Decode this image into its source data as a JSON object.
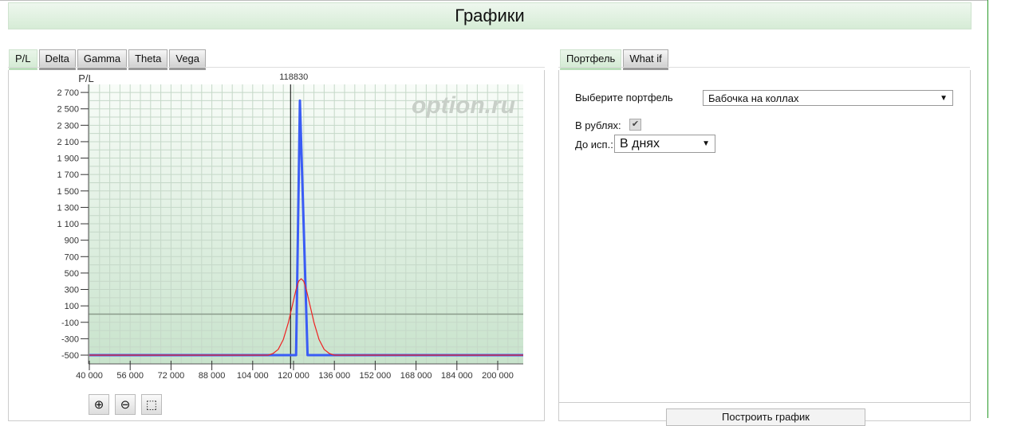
{
  "header": {
    "title": "Графики"
  },
  "left_tabs": [
    {
      "label": "P/L",
      "active": true
    },
    {
      "label": "Delta"
    },
    {
      "label": "Gamma"
    },
    {
      "label": "Theta"
    },
    {
      "label": "Vega"
    }
  ],
  "right_tabs": [
    {
      "label": "Портфель",
      "active": true
    },
    {
      "label": "What if"
    }
  ],
  "chart_data": {
    "type": "line",
    "ylabel": "P/L",
    "watermark": "option.ru",
    "xlim": [
      40000,
      210000
    ],
    "ylim": [
      -600,
      2800
    ],
    "xticks": [
      40000,
      56000,
      72000,
      88000,
      104000,
      120000,
      136000,
      152000,
      168000,
      184000,
      200000
    ],
    "xtick_labels": [
      "40 000",
      "56 000",
      "72 000",
      "88 000",
      "104 000",
      "120 000",
      "136 000",
      "152 000",
      "168 000",
      "184 000",
      "200 000"
    ],
    "yticks": [
      2700,
      2500,
      2300,
      2100,
      1900,
      1700,
      1500,
      1300,
      1100,
      900,
      700,
      500,
      300,
      100,
      -100,
      -300,
      -500
    ],
    "ytick_labels": [
      "2 700",
      "2 500",
      "2 300",
      "2 100",
      "1 900",
      "1 700",
      "1 500",
      "1 300",
      "1 100",
      "900",
      "700",
      "500",
      "300",
      "100",
      "-100",
      "-300",
      "-500"
    ],
    "grid": true,
    "current_price": {
      "value": 118830,
      "label": "118830"
    },
    "series": [
      {
        "color": "#3a5cf5",
        "x": [
          40000,
          121000,
          122500,
          125500,
          210000
        ],
        "y": [
          -500,
          -500,
          2600,
          -500,
          -500
        ]
      },
      {
        "color": "#ee2222",
        "x": [
          40000,
          110000,
          112000,
          114000,
          116000,
          118000,
          119500,
          121000,
          122000,
          123000,
          124000,
          125000,
          126500,
          128000,
          130000,
          132000,
          134000,
          136000,
          210000
        ],
        "y": [
          -500,
          -500,
          -480,
          -430,
          -310,
          -100,
          100,
          300,
          400,
          430,
          400,
          300,
          100,
          -100,
          -310,
          -430,
          -480,
          -500,
          -500
        ]
      }
    ],
    "colors": {
      "zero_line": "#8a9a8a",
      "background_top": "#f8fcf8",
      "background_bottom": "#c8e3cc"
    }
  },
  "zoom_buttons": [
    {
      "icon": "zoom-in-icon",
      "glyph": "⊕"
    },
    {
      "icon": "zoom-out-icon",
      "glyph": "⊖"
    },
    {
      "icon": "zoom-reset-icon",
      "glyph": "⬚"
    }
  ],
  "portfolio": {
    "select_label": "Выберите портфель",
    "select_value": "Бабочка на коллах",
    "rubles_label": "В рублях:",
    "rubles_checked": true,
    "expiry_label": "До исп.:",
    "expiry_value": "В днях",
    "build_button": "Построить график"
  }
}
